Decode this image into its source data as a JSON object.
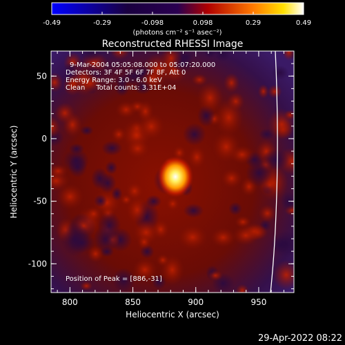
{
  "colorbar": {
    "ticks": [
      "-0.49",
      "-0.29",
      "-0.098",
      "0.098",
      "0.29",
      "0.49"
    ],
    "unit_label": "(photons cm⁻² s⁻¹ asec⁻²)",
    "colors": [
      "#0000ff",
      "#000000",
      "#ff0000",
      "#ffff00",
      "#ffffff"
    ]
  },
  "title": "Reconstructed RHESSI Image",
  "info": {
    "line1": "9-Mar-2004 05:05:08.000 to 05:07:20.000",
    "line2": "Detectors: 3F 4F 5F 6F 7F 8F, Att 0",
    "line3": "Energy Range: 3.0 - 6.0 keV",
    "line4": "Clean     Total counts: 3.31E+04"
  },
  "peak_text": "Position of Peak = [886,-31]",
  "x_axis": {
    "label": "Heliocentric X (arcsec)",
    "range": [
      785,
      978
    ],
    "ticks": [
      800,
      850,
      900,
      950
    ]
  },
  "y_axis": {
    "label": "Heliocentric Y (arcsec)",
    "range": [
      -123,
      70
    ],
    "ticks": [
      50,
      0,
      -50,
      -100
    ]
  },
  "peak": {
    "x": 886,
    "y": -31
  },
  "timestamp": "29-Apr-2022 08:22"
}
